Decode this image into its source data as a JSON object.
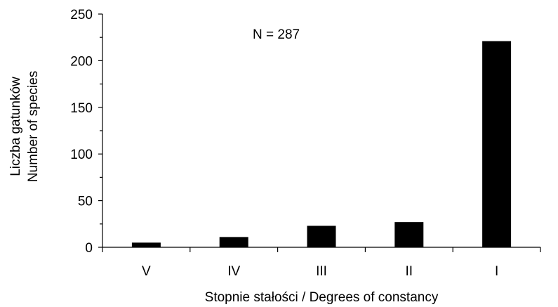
{
  "chart_data": {
    "type": "bar",
    "categories": [
      "V",
      "IV",
      "III",
      "II",
      "I"
    ],
    "values": [
      5,
      11,
      23,
      27,
      221
    ],
    "xlabel": "Stopnie stałości / Degrees of constancy",
    "ylabel_line1": "Liczba gatunków",
    "ylabel_line2": "Number of species",
    "annotation": "N = 287",
    "ylim": [
      0,
      250
    ],
    "yticks": [
      0,
      50,
      100,
      150,
      200,
      250
    ],
    "ytick_labels": [
      "0",
      "50",
      "100",
      "150",
      "200",
      "250"
    ],
    "bar_color": "#000000",
    "grid": false,
    "legend": "none"
  }
}
